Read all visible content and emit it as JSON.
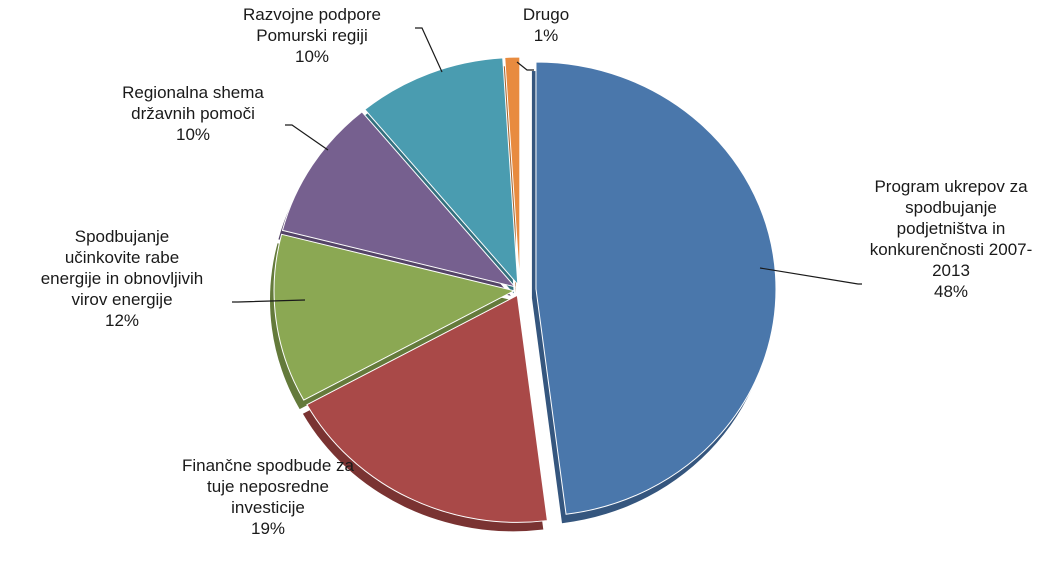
{
  "chart_data": {
    "type": "pie",
    "title": "",
    "legend": "none",
    "explode": true,
    "slices": [
      {
        "name": "Program ukrepov za spodbujanje podjetništva in konkurenčnosti 2007-2013",
        "label_lines": [
          "Program ukrepov za",
          "spodbujanje",
          "podjetništva in",
          "konkurenčnosti 2007-",
          "2013"
        ],
        "percent_label": "48%",
        "value": 48,
        "color": "#4A77AB",
        "side_color": "#35567E"
      },
      {
        "name": "Finančne spodbude za tuje neposredne investicije",
        "label_lines": [
          "Finančne spodbude za",
          "tuje neposredne",
          "investicije"
        ],
        "percent_label": "19%",
        "value": 19,
        "color": "#A94948",
        "side_color": "#7A3332"
      },
      {
        "name": "Spodbujanje učinkovite rabe energije in obnovljivih virov energije",
        "label_lines": [
          "Spodbujanje",
          "učinkovite rabe",
          "energije in obnovljivih",
          "virov energije"
        ],
        "percent_label": "12%",
        "value": 12,
        "color": "#8BA853",
        "side_color": "#647A3B"
      },
      {
        "name": "Regionalna shema državnih pomoči",
        "label_lines": [
          "Regionalna shema",
          "državnih pomoči"
        ],
        "percent_label": "10%",
        "value": 10,
        "color": "#76608F",
        "side_color": "#544467"
      },
      {
        "name": "Razvojne podpore Pomurski regiji",
        "label_lines": [
          "Razvojne podpore",
          "Pomurski regiji"
        ],
        "percent_label": "10%",
        "value": 10,
        "color": "#4A9CB0",
        "side_color": "#35717F"
      },
      {
        "name": "Drugo",
        "label_lines": [
          "Drugo"
        ],
        "percent_label": "1%",
        "value": 1,
        "color": "#E88B3F",
        "side_color": "#A8642C"
      }
    ]
  }
}
